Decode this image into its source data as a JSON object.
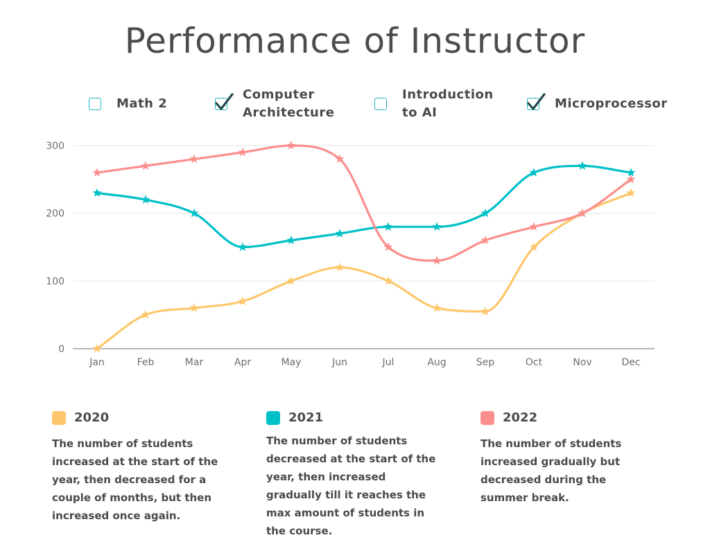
{
  "title": "Performance of Instructor",
  "courses": [
    {
      "label": "Math 2",
      "checked": false
    },
    {
      "label": "Computer Architecture",
      "checked": true
    },
    {
      "label": "Introduction to AI",
      "checked": false
    },
    {
      "label": "Microprocessor",
      "checked": true
    }
  ],
  "colors": {
    "accent": "#22b5c0",
    "check": "#1f4a4f"
  },
  "chart_data": {
    "type": "line",
    "categories": [
      "Jan",
      "Feb",
      "Mar",
      "Apr",
      "May",
      "Jun",
      "Jul",
      "Aug",
      "Sep",
      "Oct",
      "Nov",
      "Dec"
    ],
    "ylim": [
      0,
      300
    ],
    "yticks": [
      0,
      100,
      200,
      300
    ],
    "grid": true,
    "marker": "star",
    "series": [
      {
        "name": "2020",
        "color": "#fec76b",
        "values": [
          0,
          50,
          60,
          70,
          100,
          120,
          100,
          60,
          55,
          150,
          200,
          230
        ]
      },
      {
        "name": "2021",
        "color": "#00c0c8",
        "values": [
          230,
          220,
          200,
          150,
          160,
          170,
          180,
          180,
          200,
          260,
          270,
          260
        ]
      },
      {
        "name": "2022",
        "color": "#fb8e8c",
        "values": [
          260,
          270,
          280,
          290,
          300,
          280,
          150,
          130,
          160,
          180,
          200,
          250
        ]
      }
    ]
  },
  "legend": [
    {
      "year": "2020",
      "color": "#fec76b",
      "text": "The number of students increased at the start of the year, then decreased for a couple of months, but then increased once again."
    },
    {
      "year": "2021",
      "color": "#00c0c8",
      "text": "The number of students decreased at the start of the year, then increased gradually till it reaches the max amount of students in the course."
    },
    {
      "year": "2022",
      "color": "#fb8e8c",
      "text": "The number of students increased gradually but decreased during the summer break."
    }
  ]
}
